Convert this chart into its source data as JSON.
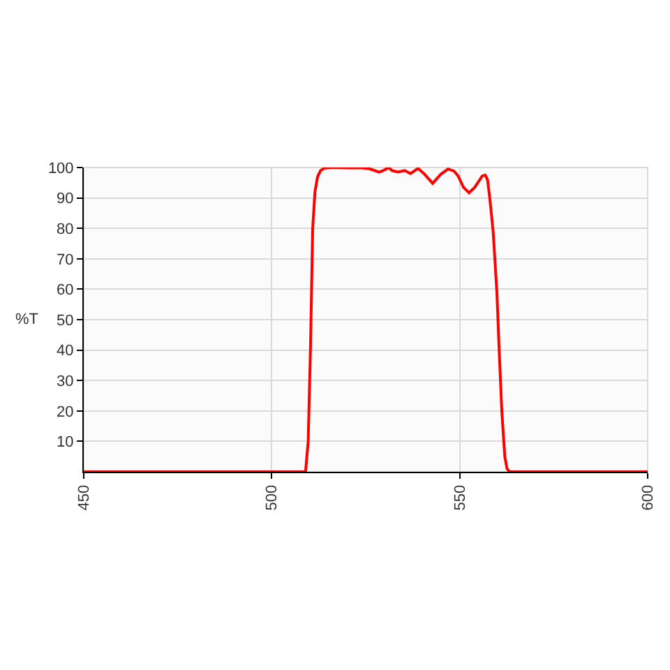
{
  "chart_data": {
    "type": "line",
    "ylabel": "%T",
    "x": [
      450,
      509,
      509.7,
      510.3,
      510.9,
      511.5,
      512.2,
      513,
      514,
      516,
      520,
      524,
      526,
      528.6,
      530,
      531.1,
      532,
      533.6,
      535.4,
      536.9,
      538.9,
      540.5,
      542.8,
      545,
      546.9,
      548.5,
      549.6,
      551,
      552.5,
      554,
      556,
      556.8,
      557.4,
      558,
      558.9,
      559.9,
      560.5,
      561.2,
      562,
      562.6,
      563.3,
      600
    ],
    "series": [
      {
        "color": "#ff0000",
        "values": [
          0,
          0,
          10,
          40,
          80,
          92,
          97,
          99,
          99.8,
          100,
          99.9,
          99.9,
          99.6,
          98.5,
          99.2,
          100,
          99,
          98.5,
          99,
          98,
          99.7,
          98,
          94.8,
          97.8,
          99.5,
          98.8,
          97.2,
          93.5,
          91.7,
          93.5,
          97.2,
          97.5,
          96,
          90,
          79,
          59,
          40,
          20,
          5,
          1,
          0,
          0
        ]
      }
    ],
    "xlim": [
      450,
      600
    ],
    "xticks": [
      450,
      500,
      550,
      600
    ],
    "ylim": [
      0,
      100
    ],
    "yticks": [
      10,
      20,
      30,
      40,
      50,
      60,
      70,
      80,
      90,
      100
    ],
    "grid": true,
    "marker": "none",
    "line_style": "solid"
  }
}
